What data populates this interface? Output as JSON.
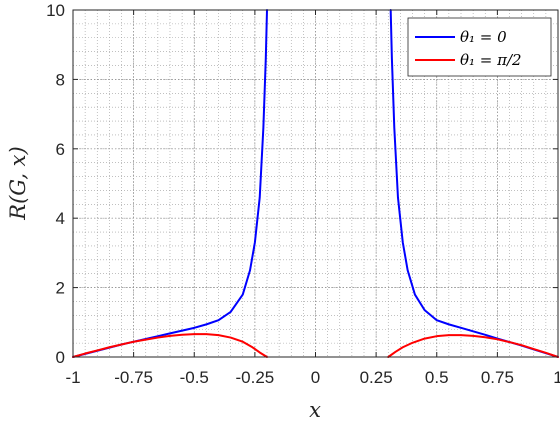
{
  "chart_data": {
    "type": "line",
    "xlabel": "x",
    "ylabel": "R(G, x)",
    "xlim": [
      -1,
      1
    ],
    "ylim": [
      0,
      10
    ],
    "grid": true,
    "minor_grid": true,
    "legend_position": "top-right",
    "x_ticks": [
      "-1",
      "-0.75",
      "-0.5",
      "-0.25",
      "0",
      "0.25",
      "0.5",
      "0.75",
      "1"
    ],
    "y_ticks": [
      "0",
      "2",
      "4",
      "6",
      "8",
      "10"
    ],
    "series": [
      {
        "name": "θ₁ = 0",
        "color": "#0000ff",
        "segments": [
          [
            [
              -1.0,
              0.0
            ],
            [
              -0.95,
              0.09
            ],
            [
              -0.9,
              0.18
            ],
            [
              -0.85,
              0.27
            ],
            [
              -0.8,
              0.36
            ],
            [
              -0.75,
              0.44
            ],
            [
              -0.7,
              0.52
            ],
            [
              -0.65,
              0.6
            ],
            [
              -0.6,
              0.68
            ],
            [
              -0.55,
              0.76
            ],
            [
              -0.5,
              0.84
            ],
            [
              -0.45,
              0.94
            ],
            [
              -0.4,
              1.06
            ],
            [
              -0.35,
              1.3
            ],
            [
              -0.3,
              1.8
            ],
            [
              -0.27,
              2.5
            ],
            [
              -0.25,
              3.3
            ],
            [
              -0.23,
              4.6
            ],
            [
              -0.215,
              6.6
            ],
            [
              -0.205,
              8.6
            ],
            [
              -0.2,
              10.0
            ]
          ],
          [
            [
              0.31,
              10.0
            ],
            [
              0.315,
              8.6
            ],
            [
              0.325,
              6.6
            ],
            [
              0.34,
              4.6
            ],
            [
              0.36,
              3.3
            ],
            [
              0.38,
              2.5
            ],
            [
              0.41,
              1.8
            ],
            [
              0.45,
              1.35
            ],
            [
              0.5,
              1.06
            ],
            [
              0.55,
              0.94
            ],
            [
              0.6,
              0.84
            ],
            [
              0.65,
              0.74
            ],
            [
              0.7,
              0.64
            ],
            [
              0.75,
              0.53
            ],
            [
              0.8,
              0.43
            ],
            [
              0.85,
              0.33
            ],
            [
              0.9,
              0.22
            ],
            [
              0.95,
              0.11
            ],
            [
              1.0,
              0.0
            ]
          ]
        ]
      },
      {
        "name": "θ₁ = π/2",
        "color": "#ff0000",
        "segments": [
          [
            [
              -1.0,
              0.0
            ],
            [
              -0.95,
              0.1
            ],
            [
              -0.9,
              0.19
            ],
            [
              -0.85,
              0.28
            ],
            [
              -0.8,
              0.36
            ],
            [
              -0.75,
              0.44
            ],
            [
              -0.7,
              0.5
            ],
            [
              -0.65,
              0.56
            ],
            [
              -0.6,
              0.61
            ],
            [
              -0.55,
              0.64
            ],
            [
              -0.5,
              0.66
            ],
            [
              -0.45,
              0.66
            ],
            [
              -0.4,
              0.63
            ],
            [
              -0.35,
              0.56
            ],
            [
              -0.3,
              0.44
            ],
            [
              -0.26,
              0.28
            ],
            [
              -0.23,
              0.13
            ],
            [
              -0.2,
              0.0
            ]
          ],
          [
            [
              0.3,
              0.0
            ],
            [
              0.33,
              0.15
            ],
            [
              0.36,
              0.28
            ],
            [
              0.4,
              0.41
            ],
            [
              0.45,
              0.53
            ],
            [
              0.5,
              0.6
            ],
            [
              0.55,
              0.63
            ],
            [
              0.6,
              0.63
            ],
            [
              0.65,
              0.61
            ],
            [
              0.7,
              0.57
            ],
            [
              0.75,
              0.51
            ],
            [
              0.8,
              0.43
            ],
            [
              0.85,
              0.34
            ],
            [
              0.9,
              0.23
            ],
            [
              0.95,
              0.12
            ],
            [
              1.0,
              0.0
            ]
          ]
        ]
      }
    ]
  }
}
